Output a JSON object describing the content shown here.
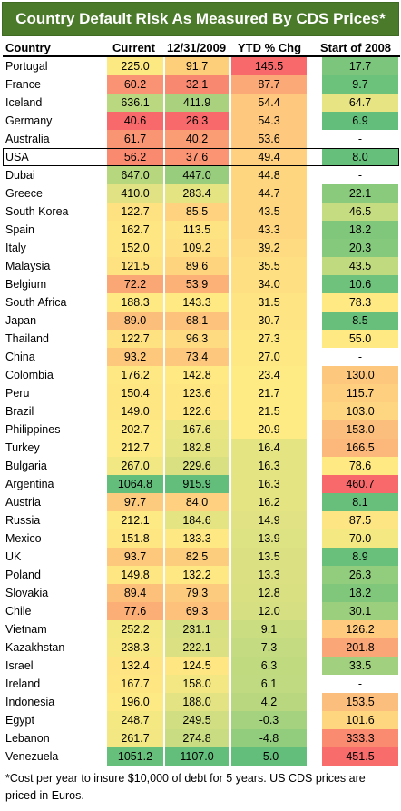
{
  "title": "Country Default Risk As Measured By CDS Prices*",
  "headers": {
    "country": "Country",
    "current": "Current",
    "dec2009": "12/31/2009",
    "ytd": "YTD % Chg",
    "start2008": "Start of 2008"
  },
  "rows": [
    {
      "country": "Portugal",
      "current": "225.0",
      "dec2009": "91.7",
      "ytd": "145.5",
      "start2008": "17.7",
      "colors": [
        "#fde982",
        "#fecf7b",
        "#f8696b",
        "#7bc67c"
      ]
    },
    {
      "country": "France",
      "current": "60.2",
      "dec2009": "32.1",
      "ytd": "87.7",
      "start2008": "9.7",
      "colors": [
        "#fa9373",
        "#f98870",
        "#fbaa77",
        "#6cc17b"
      ]
    },
    {
      "country": "Iceland",
      "current": "636.1",
      "dec2009": "411.9",
      "ytd": "54.4",
      "start2008": "64.7",
      "colors": [
        "#bad87f",
        "#aad27e",
        "#fec97e",
        "#e6e483"
      ]
    },
    {
      "country": "Germany",
      "current": "40.6",
      "dec2009": "26.3",
      "ytd": "54.3",
      "start2008": "6.9",
      "colors": [
        "#f8696b",
        "#f8696b",
        "#fec97e",
        "#63be7b"
      ]
    },
    {
      "country": "Australia",
      "current": "61.7",
      "dec2009": "40.2",
      "ytd": "53.6",
      "start2008": "-",
      "colors": [
        "#fa9573",
        "#fa9c74",
        "#fec97e",
        "#ffffff"
      ]
    },
    {
      "country": "USA",
      "current": "56.2",
      "dec2009": "37.6",
      "ytd": "49.4",
      "start2008": "8.0",
      "colors": [
        "#f98a70",
        "#fa9472",
        "#fed07f",
        "#66bf7b"
      ]
    },
    {
      "country": "Dubai",
      "current": "647.0",
      "dec2009": "447.0",
      "ytd": "44.8",
      "start2008": "-",
      "colors": [
        "#b7d77f",
        "#99cd7e",
        "#fed680",
        "#ffffff"
      ]
    },
    {
      "country": "Greece",
      "current": "410.0",
      "dec2009": "283.4",
      "ytd": "44.7",
      "start2008": "22.1",
      "colors": [
        "#e0e283",
        "#e5e483",
        "#fed680",
        "#8aca7d"
      ]
    },
    {
      "country": "South Korea",
      "current": "122.7",
      "dec2009": "85.5",
      "ytd": "43.5",
      "start2008": "46.5",
      "colors": [
        "#fee282",
        "#fed27f",
        "#fed680",
        "#c6dc81"
      ]
    },
    {
      "country": "Spain",
      "current": "162.7",
      "dec2009": "113.5",
      "ytd": "43.3",
      "start2008": "18.2",
      "colors": [
        "#fee683",
        "#fee382",
        "#fed680",
        "#80c77c"
      ]
    },
    {
      "country": "Italy",
      "current": "152.0",
      "dec2009": "109.2",
      "ytd": "39.2",
      "start2008": "20.3",
      "colors": [
        "#fee683",
        "#fee082",
        "#fedb81",
        "#84c97c"
      ]
    },
    {
      "country": "Malaysia",
      "current": "121.5",
      "dec2009": "89.6",
      "ytd": "35.5",
      "start2008": "43.5",
      "colors": [
        "#fee282",
        "#fed47f",
        "#fee082",
        "#c0da80"
      ]
    },
    {
      "country": "Belgium",
      "current": "72.2",
      "dec2009": "53.9",
      "ytd": "34.0",
      "start2008": "10.6",
      "colors": [
        "#fba675",
        "#fcb277",
        "#fee082",
        "#6ec27b"
      ]
    },
    {
      "country": "South Africa",
      "current": "188.3",
      "dec2009": "143.3",
      "ytd": "31.5",
      "start2008": "78.3",
      "colors": [
        "#fee983",
        "#fee983",
        "#fee482",
        "#fee983"
      ]
    },
    {
      "country": "Japan",
      "current": "89.0",
      "dec2009": "68.1",
      "ytd": "30.7",
      "start2008": "8.5",
      "colors": [
        "#fcbf7b",
        "#fdc27c",
        "#fee482",
        "#68bf7b"
      ]
    },
    {
      "country": "Thailand",
      "current": "122.7",
      "dec2009": "96.3",
      "ytd": "27.3",
      "start2008": "55.0",
      "colors": [
        "#fee282",
        "#fedb81",
        "#fee883",
        "#fee983"
      ]
    },
    {
      "country": "China",
      "current": "93.2",
      "dec2009": "73.4",
      "ytd": "27.0",
      "start2008": "-",
      "colors": [
        "#fdc77c",
        "#fdc87d",
        "#fee883",
        "#ffffff"
      ]
    },
    {
      "country": "Colombia",
      "current": "176.2",
      "dec2009": "142.8",
      "ytd": "23.4",
      "start2008": "130.0",
      "colors": [
        "#fee883",
        "#fee983",
        "#feeb84",
        "#fdc87e"
      ]
    },
    {
      "country": "Peru",
      "current": "150.4",
      "dec2009": "123.6",
      "ytd": "21.7",
      "start2008": "115.7",
      "colors": [
        "#fee683",
        "#fee683",
        "#feeb84",
        "#fdcf7f"
      ]
    },
    {
      "country": "Brazil",
      "current": "149.0",
      "dec2009": "122.6",
      "ytd": "21.5",
      "start2008": "103.0",
      "colors": [
        "#fee683",
        "#fee683",
        "#feeb84",
        "#fed580"
      ]
    },
    {
      "country": "Philippines",
      "current": "202.7",
      "dec2009": "167.6",
      "ytd": "20.9",
      "start2008": "153.0",
      "colors": [
        "#feea84",
        "#eae583",
        "#feeb84",
        "#fcbe7c"
      ]
    },
    {
      "country": "Turkey",
      "current": "212.7",
      "dec2009": "182.8",
      "ytd": "16.4",
      "start2008": "166.5",
      "colors": [
        "#feea84",
        "#e5e483",
        "#e5e483",
        "#fcb87b"
      ]
    },
    {
      "country": "Bulgaria",
      "current": "267.0",
      "dec2009": "229.6",
      "ytd": "16.3",
      "start2008": "78.6",
      "colors": [
        "#f1e783",
        "#d8e082",
        "#e5e483",
        "#fee983"
      ]
    },
    {
      "country": "Argentina",
      "current": "1064.8",
      "dec2009": "915.9",
      "ytd": "16.3",
      "start2008": "460.7",
      "colors": [
        "#63be7b",
        "#63be7b",
        "#e5e483",
        "#f8696b"
      ]
    },
    {
      "country": "Austria",
      "current": "97.7",
      "dec2009": "84.0",
      "ytd": "16.2",
      "start2008": "8.1",
      "colors": [
        "#fdcb7d",
        "#fed07f",
        "#e5e483",
        "#67bf7b"
      ]
    },
    {
      "country": "Russia",
      "current": "212.1",
      "dec2009": "184.6",
      "ytd": "14.9",
      "start2008": "87.5",
      "colors": [
        "#feea84",
        "#e5e483",
        "#e0e283",
        "#fee583"
      ]
    },
    {
      "country": "Mexico",
      "current": "151.8",
      "dec2009": "133.3",
      "ytd": "13.9",
      "start2008": "70.0",
      "colors": [
        "#fee683",
        "#fee883",
        "#dde282",
        "#f4e883"
      ]
    },
    {
      "country": "UK",
      "current": "93.7",
      "dec2009": "82.5",
      "ytd": "13.5",
      "start2008": "8.9",
      "colors": [
        "#fdc77c",
        "#fdcd7e",
        "#dbe182",
        "#69c07b"
      ]
    },
    {
      "country": "Poland",
      "current": "149.8",
      "dec2009": "132.2",
      "ytd": "13.3",
      "start2008": "26.3",
      "colors": [
        "#fee683",
        "#fee883",
        "#dbe182",
        "#92cc7d"
      ]
    },
    {
      "country": "Slovakia",
      "current": "89.4",
      "dec2009": "79.3",
      "ytd": "12.8",
      "start2008": "18.2",
      "colors": [
        "#fdc07b",
        "#fdcb7d",
        "#d9e082",
        "#80c77c"
      ]
    },
    {
      "country": "Chile",
      "current": "77.6",
      "dec2009": "69.3",
      "ytd": "12.0",
      "start2008": "30.1",
      "colors": [
        "#fcae77",
        "#fdc17c",
        "#d6e082",
        "#9bcf7e"
      ]
    },
    {
      "country": "Vietnam",
      "current": "252.2",
      "dec2009": "231.1",
      "ytd": "9.1",
      "start2008": "126.2",
      "colors": [
        "#f4e883",
        "#d7e082",
        "#cbdd81",
        "#fdca7e"
      ]
    },
    {
      "country": "Kazakhstan",
      "current": "238.3",
      "dec2009": "222.1",
      "ytd": "7.3",
      "start2008": "201.8",
      "colors": [
        "#f7e883",
        "#dbe182",
        "#c4db81",
        "#fba677"
      ]
    },
    {
      "country": "Israel",
      "current": "132.4",
      "dec2009": "124.5",
      "ytd": "6.3",
      "start2008": "33.5",
      "colors": [
        "#fee483",
        "#fee683",
        "#c0da80",
        "#a1d17e"
      ]
    },
    {
      "country": "Ireland",
      "current": "167.7",
      "dec2009": "158.0",
      "ytd": "6.1",
      "start2008": "-",
      "colors": [
        "#fee783",
        "#f2e783",
        "#bfda80",
        "#ffffff"
      ]
    },
    {
      "country": "Indonesia",
      "current": "196.0",
      "dec2009": "188.0",
      "ytd": "4.2",
      "start2008": "153.5",
      "colors": [
        "#feea84",
        "#e3e383",
        "#b8d77f",
        "#fcbe7c"
      ]
    },
    {
      "country": "Egypt",
      "current": "248.7",
      "dec2009": "249.5",
      "ytd": "-0.3",
      "start2008": "101.6",
      "colors": [
        "#f4e883",
        "#d1de82",
        "#a5d27e",
        "#fed680"
      ]
    },
    {
      "country": "Lebanon",
      "current": "261.7",
      "dec2009": "274.8",
      "ytd": "-4.8",
      "start2008": "333.3",
      "colors": [
        "#f2e783",
        "#cadc81",
        "#92cc7d",
        "#fa8a70"
      ]
    },
    {
      "country": "Venezuela",
      "current": "1051.2",
      "dec2009": "1107.0",
      "ytd": "-5.0",
      "start2008": "451.5",
      "colors": [
        "#66bf7b",
        "#63be7b",
        "#63be7b",
        "#f96c6c"
      ]
    }
  ],
  "highlight_country": "USA",
  "footnote": "*Cost per year to insure $10,000 of debt for 5 years.  US CDS prices are priced in Euros."
}
